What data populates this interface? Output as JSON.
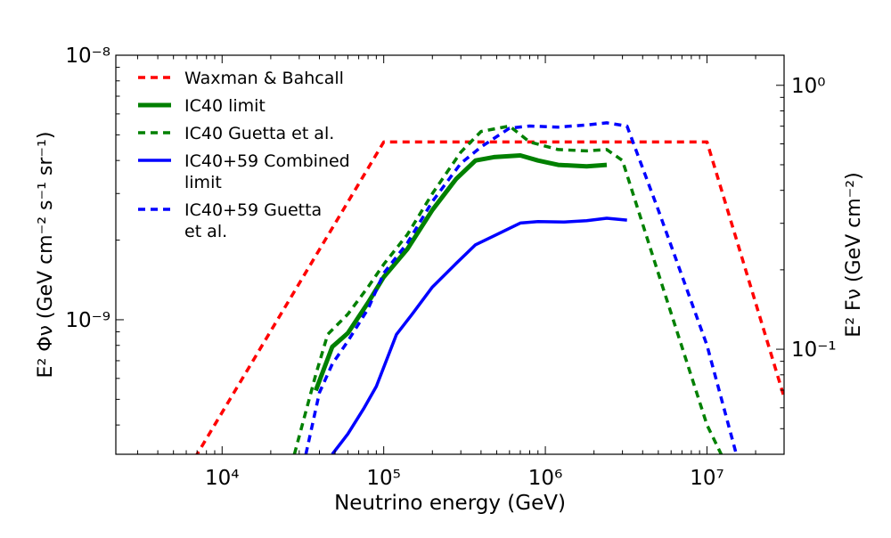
{
  "chart_data": {
    "type": "line",
    "xlabel": "Neutrino energy (GeV)",
    "ylabel": "E² Φν (GeV cm⁻² s⁻¹ sr⁻¹)",
    "ylabel_right": "E² Fν (GeV cm⁻²)",
    "x_scale": "log",
    "y_scale": "log",
    "xlim": [
      2200,
      30000000
    ],
    "ylim": [
      3.1e-10,
      1e-08
    ],
    "ylim_right": [
      0.04,
      1.3
    ],
    "x_ticks": [
      {
        "value": 10000,
        "label": "10⁴"
      },
      {
        "value": 100000,
        "label": "10⁵"
      },
      {
        "value": 1000000,
        "label": "10⁶"
      },
      {
        "value": 10000000,
        "label": "10⁷"
      }
    ],
    "y_ticks": [
      {
        "value": 1e-09,
        "label": "10⁻⁹"
      },
      {
        "value": 1e-08,
        "label": "10⁻⁸"
      }
    ],
    "y_ticks_right": [
      {
        "value": 0.1,
        "label": "10⁻¹"
      },
      {
        "value": 1,
        "label": "10⁰"
      }
    ],
    "grid": false,
    "legend_position": "top-left",
    "series": [
      {
        "name": "Waxman & Bahcall",
        "color": "#ff0000",
        "style": "dashed",
        "width": 3.5,
        "x": [
          2200,
          7000,
          100000,
          10000000,
          30000000
        ],
        "y": [
          1.3e-10,
          3.1e-10,
          4.7e-09,
          4.7e-09,
          5.1e-10
        ]
      },
      {
        "name": "IC40 limit",
        "color": "#008000",
        "style": "solid",
        "width": 5,
        "x": [
          38000,
          48000,
          60000,
          80000,
          100000,
          140000,
          200000,
          280000,
          370000,
          480000,
          700000,
          900000,
          1200000,
          1800000,
          2400000
        ],
        "y": [
          5.4e-10,
          7.9e-10,
          8.9e-10,
          1.16e-09,
          1.45e-09,
          1.85e-09,
          2.6e-09,
          3.4e-09,
          4e-09,
          4.12e-09,
          4.18e-09,
          4e-09,
          3.85e-09,
          3.8e-09,
          3.85e-09
        ]
      },
      {
        "name": "IC40 Guetta et al.",
        "color": "#008000",
        "style": "dashed",
        "width": 3.5,
        "x": [
          28000,
          38000,
          45000,
          60000,
          80000,
          100000,
          140000,
          200000,
          300000,
          400000,
          600000,
          800000,
          1200000,
          1800000,
          2400000,
          3000000,
          5000000,
          10000000,
          15000000
        ],
        "y": [
          3.1e-10,
          6.2e-10,
          8.8e-10,
          1.05e-09,
          1.33e-09,
          1.62e-09,
          2.1e-09,
          3e-09,
          4.3e-09,
          5.15e-09,
          5.4e-09,
          4.7e-09,
          4.4e-09,
          4.35e-09,
          4.4e-09,
          4e-09,
          1.5e-09,
          4e-10,
          2.4e-10
        ]
      },
      {
        "name": "IC40+59 Combined limit",
        "color": "#0000ff",
        "style": "solid",
        "width": 3.5,
        "x": [
          48000,
          60000,
          75000,
          90000,
          120000,
          150000,
          200000,
          280000,
          370000,
          500000,
          700000,
          900000,
          1300000,
          1800000,
          2400000,
          3200000
        ],
        "y": [
          3.1e-10,
          3.7e-10,
          4.6e-10,
          5.6e-10,
          8.8e-10,
          1.05e-09,
          1.33e-09,
          1.63e-09,
          1.92e-09,
          2.1e-09,
          2.32e-09,
          2.35e-09,
          2.34e-09,
          2.37e-09,
          2.42e-09,
          2.38e-09
        ]
      },
      {
        "name": "IC40+59 Guetta et al.",
        "color": "#0000ff",
        "style": "dashed",
        "width": 3.5,
        "x": [
          33000,
          40000,
          48000,
          60000,
          80000,
          100000,
          140000,
          200000,
          300000,
          400000,
          600000,
          800000,
          1200000,
          1800000,
          2400000,
          3200000,
          5000000,
          10000000,
          17000000
        ],
        "y": [
          3.1e-10,
          5.3e-10,
          6.8e-10,
          8.3e-10,
          1.1e-09,
          1.5e-09,
          1.95e-09,
          2.8e-09,
          3.9e-09,
          4.5e-09,
          5.3e-09,
          5.4e-09,
          5.35e-09,
          5.45e-09,
          5.55e-09,
          5.4e-09,
          2.6e-09,
          8e-10,
          2.4e-10
        ]
      }
    ],
    "legend_labels": [
      [
        "Waxman & Bahcall"
      ],
      [
        "IC40 limit"
      ],
      [
        "IC40 Guetta et al."
      ],
      [
        "IC40+59 Combined",
        "limit"
      ],
      [
        "IC40+59 Guetta",
        "et al."
      ]
    ]
  }
}
